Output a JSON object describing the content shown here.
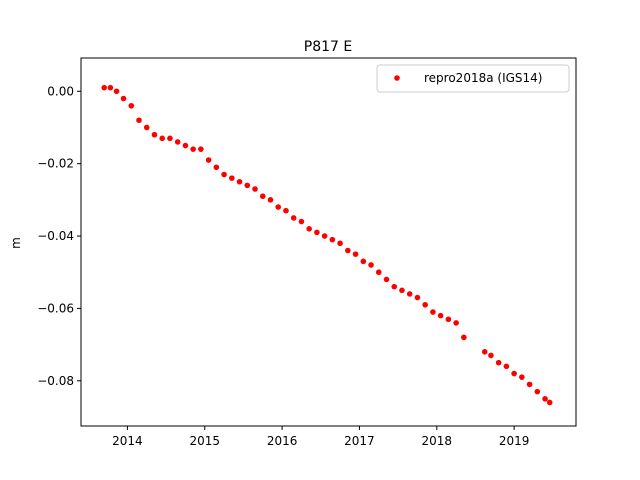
{
  "chart_data": {
    "type": "scatter",
    "title": "P817 E",
    "xlabel": "",
    "ylabel": "m",
    "xlim": [
      2013.4,
      2019.8
    ],
    "ylim": [
      -0.0925,
      0.0092
    ],
    "xticks": [
      2014,
      2015,
      2016,
      2017,
      2018,
      2019
    ],
    "yticks": [
      0.0,
      -0.02,
      -0.04,
      -0.06,
      -0.08
    ],
    "ytick_labels": [
      "0.00",
      "−0.02",
      "−0.04",
      "−0.06",
      "−0.08"
    ],
    "grid": false,
    "legend": "top-right",
    "series": [
      {
        "name": "repro2018a (IGS14)",
        "color": "#ff0000",
        "marker": "circle",
        "x": [
          2013.7,
          2013.78,
          2013.86,
          2013.95,
          2014.05,
          2014.15,
          2014.25,
          2014.35,
          2014.45,
          2014.55,
          2014.65,
          2014.75,
          2014.85,
          2014.95,
          2015.05,
          2015.15,
          2015.25,
          2015.35,
          2015.45,
          2015.55,
          2015.65,
          2015.75,
          2015.85,
          2015.95,
          2016.05,
          2016.15,
          2016.25,
          2016.35,
          2016.45,
          2016.55,
          2016.65,
          2016.75,
          2016.85,
          2016.95,
          2017.05,
          2017.15,
          2017.25,
          2017.35,
          2017.45,
          2017.55,
          2017.65,
          2017.75,
          2017.85,
          2017.95,
          2018.05,
          2018.15,
          2018.25,
          2018.35,
          2018.62,
          2018.7,
          2018.8,
          2018.9,
          2019.0,
          2019.1,
          2019.2,
          2019.3,
          2019.4,
          2019.46
        ],
        "y": [
          0.001,
          0.001,
          0.0,
          -0.002,
          -0.004,
          -0.008,
          -0.01,
          -0.012,
          -0.013,
          -0.013,
          -0.014,
          -0.015,
          -0.016,
          -0.016,
          -0.019,
          -0.021,
          -0.023,
          -0.024,
          -0.025,
          -0.026,
          -0.027,
          -0.029,
          -0.03,
          -0.032,
          -0.033,
          -0.035,
          -0.036,
          -0.038,
          -0.039,
          -0.04,
          -0.041,
          -0.042,
          -0.044,
          -0.045,
          -0.047,
          -0.048,
          -0.05,
          -0.052,
          -0.054,
          -0.055,
          -0.056,
          -0.057,
          -0.059,
          -0.061,
          -0.062,
          -0.063,
          -0.064,
          -0.068,
          -0.072,
          -0.073,
          -0.075,
          -0.076,
          -0.078,
          -0.079,
          -0.081,
          -0.083,
          -0.085,
          -0.086
        ]
      }
    ]
  }
}
